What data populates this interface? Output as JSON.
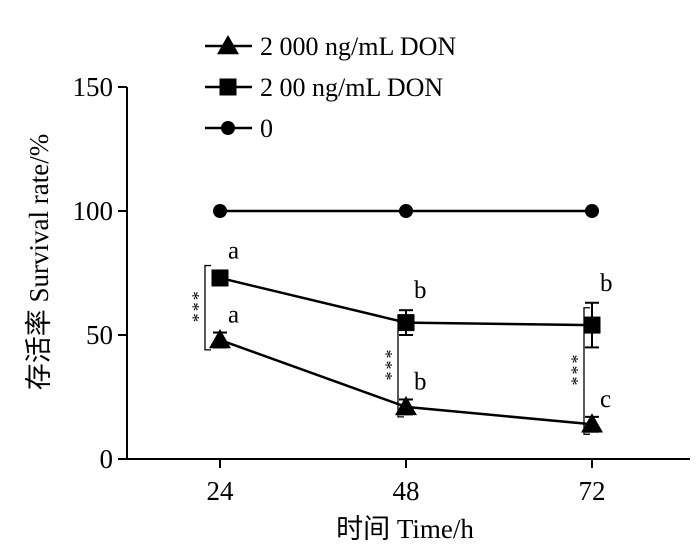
{
  "chart_data": {
    "type": "line",
    "x": [
      24,
      48,
      72
    ],
    "xlabel": "时间 Time/h",
    "ylabel": "存活率 Survival rate/%",
    "ylim": [
      0,
      150
    ],
    "yticks": [
      0,
      50,
      100,
      150
    ],
    "xticks": [
      24,
      48,
      72
    ],
    "grid": false,
    "legend_position": "top-left",
    "series": [
      {
        "name": "2 000 ng/mL DON",
        "marker": "triangle",
        "values": [
          48,
          21,
          14
        ],
        "error": [
          3,
          3,
          3
        ],
        "letters": [
          "a",
          "b",
          "c"
        ]
      },
      {
        "name": "2 00 ng/mL DON",
        "marker": "square",
        "values": [
          73,
          55,
          54
        ],
        "error": [
          3,
          5,
          9
        ],
        "letters": [
          "a",
          "b",
          "b"
        ]
      },
      {
        "name": "0",
        "marker": "circle",
        "values": [
          100,
          100,
          100
        ],
        "error": [
          0,
          0,
          0
        ],
        "letters": []
      }
    ],
    "significance": [
      {
        "x": 24,
        "between": [
          "2 000 ng/mL DON",
          "2 00 ng/mL DON"
        ],
        "label": "***"
      },
      {
        "x": 48,
        "between": [
          "2 000 ng/mL DON",
          "2 00 ng/mL DON"
        ],
        "label": "***"
      },
      {
        "x": 72,
        "between": [
          "2 000 ng/mL DON",
          "2 00 ng/mL DON"
        ],
        "label": "***"
      }
    ],
    "colors": {
      "line": "#000000",
      "marker": "#000000"
    }
  }
}
